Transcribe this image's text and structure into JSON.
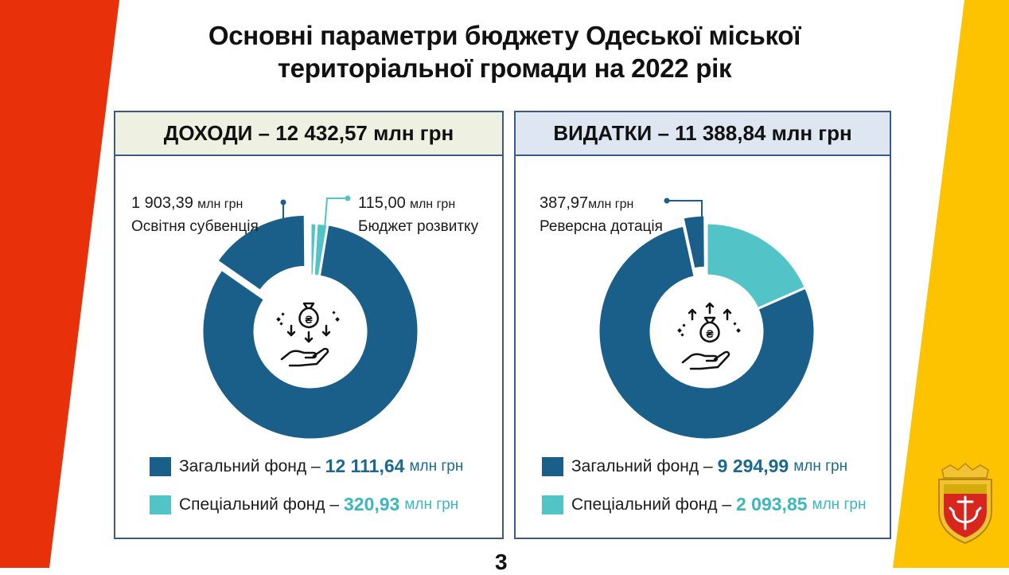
{
  "title_line1": "Основні параметри бюджету Одеської міської",
  "title_line2": "територіальної громади на 2022 рік",
  "page_number": "3",
  "colors": {
    "red": "#e8310b",
    "yellow": "#fdc300",
    "dark_blue": "#1a5f8a",
    "cyan": "#52c4c8",
    "panel_border": "#3d5a84",
    "left_header_bg": "#eef1e2",
    "right_header_bg": "#dde6f1"
  },
  "income": {
    "header": "ДОХОДИ – 12 432,57 млн грн",
    "callout_left_num": "1 903,39",
    "callout_left_unit": "млн грн",
    "callout_left_label": "Освітня субвенція",
    "callout_right_num": "115,00",
    "callout_right_unit": "млн грн",
    "callout_right_label": "Бюджет розвитку",
    "legend_general_label": "Загальний фонд –",
    "legend_general_value": "12 111,64",
    "legend_general_unit": "млн грн",
    "legend_special_label": "Спеціальний фонд –",
    "legend_special_value": "320,93",
    "legend_special_unit": "млн грн",
    "icon": "money-bag-hand-down-icon"
  },
  "expense": {
    "header": "ВИДАТКИ – 11 388,84 млн грн",
    "callout_num": "387,97",
    "callout_unit": "млн грн",
    "callout_label": "Реверсна дотація",
    "legend_general_label": "Загальний фонд –",
    "legend_general_value": "9 294,99",
    "legend_general_unit": "млн грн",
    "legend_special_label": "Спеціальний фонд –",
    "legend_special_value": "2 093,85",
    "legend_special_unit": "млн грн",
    "icon": "money-bag-hand-up-icon"
  },
  "chart_data": [
    {
      "type": "pie",
      "title": "ДОХОДИ – 12 432,57 млн грн",
      "unit": "млн грн",
      "categories": [
        "Загальний фонд",
        "Спеціальний фонд"
      ],
      "values": [
        12111.64,
        320.93
      ],
      "sub_segments": [
        {
          "name": "Освітня субвенція",
          "value": 1903.39,
          "part_of": "Загальний фонд",
          "exploded": true
        },
        {
          "name": "Бюджет розвитку",
          "value": 115.0,
          "part_of": "Спеціальний фонд",
          "exploded": true
        }
      ],
      "colors": [
        "#1a5f8a",
        "#52c4c8"
      ]
    },
    {
      "type": "pie",
      "title": "ВИДАТКИ – 11 388,84 млн грн",
      "unit": "млн грн",
      "categories": [
        "Загальний фонд",
        "Спеціальний фонд"
      ],
      "values": [
        9294.99,
        2093.85
      ],
      "sub_segments": [
        {
          "name": "Реверсна дотація",
          "value": 387.97,
          "part_of": "Загальний фонд",
          "exploded": true
        }
      ],
      "colors": [
        "#1a5f8a",
        "#52c4c8"
      ]
    }
  ]
}
